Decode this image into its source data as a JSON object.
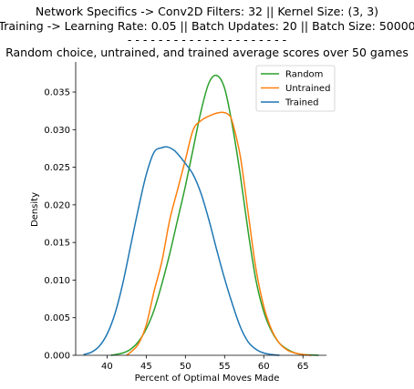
{
  "chart_data": {
    "type": "line",
    "title_lines": [
      "Network Specifics -> Conv2D Filters: 32 || Kernel Size: (3, 3)",
      "Training -> Learning Rate: 0.05 || Batch Updates: 20 || Batch Size: 50000",
      "- - - - - - - - - - - - - - - - - - - - -",
      "Random choice, untrained, and trained average scores over 50 games"
    ],
    "xlabel": "Percent of Optimal Moves Made",
    "ylabel": "Density",
    "xlim": [
      36,
      68
    ],
    "ylim": [
      0,
      0.039
    ],
    "xticks": [
      40,
      45,
      50,
      55,
      60,
      65
    ],
    "xtick_labels": [
      "40",
      "45",
      "50",
      "55",
      "60",
      "65"
    ],
    "yticks": [
      0,
      0.005,
      0.01,
      0.015,
      0.02,
      0.025,
      0.03,
      0.035
    ],
    "ytick_labels": [
      "0.000",
      "0.005",
      "0.010",
      "0.015",
      "0.020",
      "0.025",
      "0.030",
      "0.035"
    ],
    "grid": false,
    "legend_position": "top-right",
    "series": [
      {
        "name": "Random",
        "color": "#2ca02c",
        "x": [
          40.5,
          42,
          43,
          44,
          45,
          46,
          47,
          48,
          49,
          50,
          51,
          52,
          53,
          54,
          55,
          56,
          57,
          58,
          59,
          60,
          61,
          62,
          63,
          64,
          65,
          66,
          67
        ],
        "y": [
          0.0,
          0.0003,
          0.0008,
          0.0018,
          0.0035,
          0.006,
          0.0095,
          0.0135,
          0.018,
          0.0225,
          0.0275,
          0.0325,
          0.0362,
          0.0372,
          0.0355,
          0.0305,
          0.024,
          0.0165,
          0.01,
          0.0058,
          0.0032,
          0.0016,
          0.0008,
          0.0003,
          0.0001,
          5e-05,
          0.0
        ]
      },
      {
        "name": "Untrained",
        "color": "#ff7f0e",
        "x": [
          42.5,
          43,
          44,
          45,
          46,
          47,
          48,
          49,
          50,
          51,
          52,
          53,
          54,
          54.8,
          55.5,
          56,
          57,
          58,
          59,
          60,
          61,
          62,
          63,
          64,
          65,
          66
        ],
        "y": [
          0.0,
          0.0004,
          0.0015,
          0.004,
          0.0085,
          0.0125,
          0.018,
          0.022,
          0.026,
          0.03,
          0.0312,
          0.0318,
          0.0322,
          0.0323,
          0.032,
          0.031,
          0.0265,
          0.019,
          0.0115,
          0.0065,
          0.0034,
          0.0016,
          0.0007,
          0.0003,
          0.0001,
          0.0
        ]
      },
      {
        "name": "Trained",
        "color": "#1f77b4",
        "x": [
          37,
          38,
          39,
          40,
          41,
          42,
          43,
          44,
          45,
          46,
          47,
          47.7,
          48.5,
          49,
          50,
          51,
          52,
          53,
          54,
          55,
          56,
          57,
          58,
          59,
          60,
          61,
          62
        ],
        "y": [
          0.0001,
          0.0004,
          0.0012,
          0.0028,
          0.0055,
          0.0095,
          0.0145,
          0.0195,
          0.024,
          0.027,
          0.0276,
          0.0277,
          0.0273,
          0.0268,
          0.0255,
          0.024,
          0.0215,
          0.018,
          0.014,
          0.0102,
          0.0068,
          0.0038,
          0.0018,
          0.0008,
          0.0003,
          0.0001,
          0.0
        ]
      }
    ]
  }
}
